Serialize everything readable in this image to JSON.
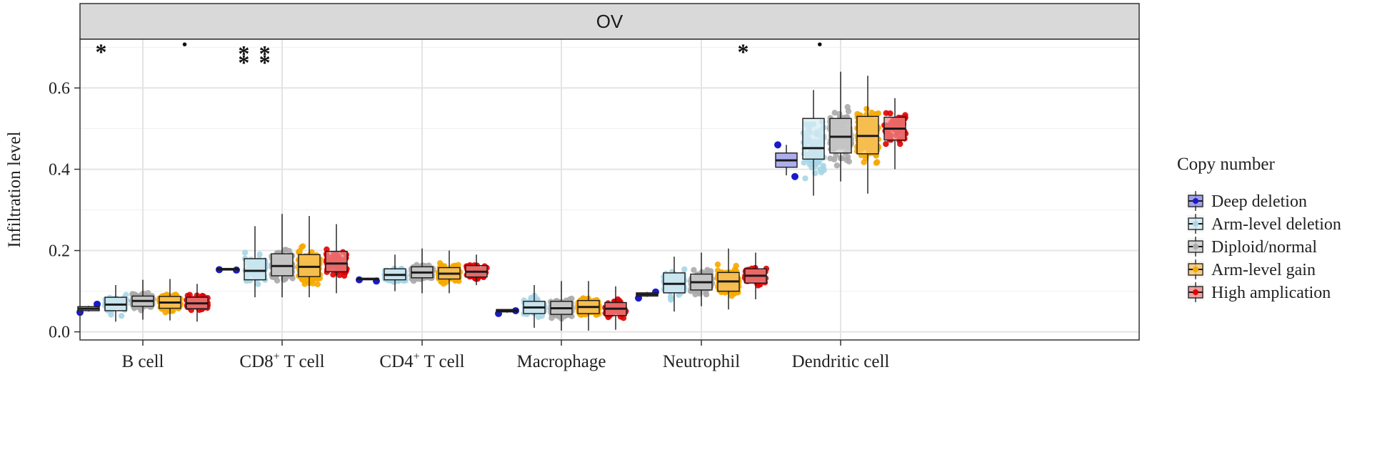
{
  "chart_data": {
    "type": "boxplot",
    "panel_title": "OV",
    "ylabel": "Infiltration level",
    "xlabel": "",
    "ylim": [
      -0.02,
      0.72
    ],
    "yticks": [
      0.0,
      0.2,
      0.4,
      0.6
    ],
    "ytick_labels": [
      "0.0",
      "0.2",
      "0.4",
      "0.6"
    ],
    "categories": [
      {
        "label": "B cell",
        "sup": ""
      },
      {
        "label": "CD8",
        "sup": "+",
        "rest": " T cell"
      },
      {
        "label": "CD4",
        "sup": "+",
        "rest": " T cell"
      },
      {
        "label": "Macrophage",
        "sup": ""
      },
      {
        "label": "Neutrophil",
        "sup": ""
      },
      {
        "label": "Dendritic cell",
        "sup": ""
      }
    ],
    "legend": {
      "title": "Copy number",
      "position": "right",
      "items": [
        "Deep deletion",
        "Arm-level deletion",
        "Diploid/normal",
        "Arm-level gain",
        "High amplication"
      ]
    },
    "groups": [
      {
        "name": "Deep deletion",
        "fill": "#8f8fe8",
        "point": "#1a1acc",
        "n": 2
      },
      {
        "name": "Arm-level deletion",
        "fill": "#d6ebf2",
        "point": "#a8d5e6",
        "n": 90
      },
      {
        "name": "Diploid/normal",
        "fill": "#cfcfcf",
        "point": "#aaaaaa",
        "n": 160
      },
      {
        "name": "Arm-level gain",
        "fill": "#f7c56e",
        "point": "#f5a800",
        "n": 160
      },
      {
        "name": "High amplication",
        "fill": "#ef8f8f",
        "point": "#e00000",
        "n": 60
      }
    ],
    "series": [
      {
        "category": "B cell",
        "boxes": [
          {
            "q1": 0.052,
            "median": 0.057,
            "q3": 0.062,
            "wlo": 0.05,
            "whi": 0.064,
            "pts": [
              0.048,
              0.068
            ]
          },
          {
            "q1": 0.052,
            "median": 0.067,
            "q3": 0.085,
            "wlo": 0.025,
            "whi": 0.115
          },
          {
            "q1": 0.063,
            "median": 0.076,
            "q3": 0.088,
            "wlo": 0.03,
            "whi": 0.128
          },
          {
            "q1": 0.058,
            "median": 0.072,
            "q3": 0.087,
            "wlo": 0.028,
            "whi": 0.13
          },
          {
            "q1": 0.057,
            "median": 0.07,
            "q3": 0.085,
            "wlo": 0.025,
            "whi": 0.118
          }
        ]
      },
      {
        "category": "CD8+ T cell",
        "boxes": [
          {
            "q1": 0.152,
            "median": 0.154,
            "q3": 0.156,
            "wlo": 0.151,
            "whi": 0.157,
            "pts": [
              0.153,
              0.152
            ]
          },
          {
            "q1": 0.128,
            "median": 0.15,
            "q3": 0.18,
            "wlo": 0.085,
            "whi": 0.26
          },
          {
            "q1": 0.138,
            "median": 0.162,
            "q3": 0.192,
            "wlo": 0.085,
            "whi": 0.29
          },
          {
            "q1": 0.136,
            "median": 0.16,
            "q3": 0.19,
            "wlo": 0.085,
            "whi": 0.285
          },
          {
            "q1": 0.148,
            "median": 0.168,
            "q3": 0.198,
            "wlo": 0.095,
            "whi": 0.265
          }
        ]
      },
      {
        "category": "CD4+ T cell",
        "boxes": [
          {
            "q1": 0.128,
            "median": 0.13,
            "q3": 0.132,
            "wlo": 0.127,
            "whi": 0.133,
            "pts": [
              0.128,
              0.125
            ]
          },
          {
            "q1": 0.128,
            "median": 0.14,
            "q3": 0.155,
            "wlo": 0.1,
            "whi": 0.19
          },
          {
            "q1": 0.133,
            "median": 0.146,
            "q3": 0.16,
            "wlo": 0.095,
            "whi": 0.205
          },
          {
            "q1": 0.13,
            "median": 0.143,
            "q3": 0.158,
            "wlo": 0.095,
            "whi": 0.2
          },
          {
            "q1": 0.135,
            "median": 0.148,
            "q3": 0.163,
            "wlo": 0.115,
            "whi": 0.19
          }
        ]
      },
      {
        "category": "Macrophage",
        "boxes": [
          {
            "q1": 0.049,
            "median": 0.052,
            "q3": 0.055,
            "wlo": 0.047,
            "whi": 0.056,
            "pts": [
              0.045,
              0.052
            ]
          },
          {
            "q1": 0.045,
            "median": 0.06,
            "q3": 0.075,
            "wlo": 0.01,
            "whi": 0.115
          },
          {
            "q1": 0.043,
            "median": 0.058,
            "q3": 0.075,
            "wlo": 0.003,
            "whi": 0.125
          },
          {
            "q1": 0.045,
            "median": 0.061,
            "q3": 0.077,
            "wlo": 0.003,
            "whi": 0.125
          },
          {
            "q1": 0.04,
            "median": 0.057,
            "q3": 0.072,
            "wlo": 0.005,
            "whi": 0.112
          }
        ]
      },
      {
        "category": "Neutrophil",
        "boxes": [
          {
            "q1": 0.088,
            "median": 0.092,
            "q3": 0.096,
            "wlo": 0.086,
            "whi": 0.098,
            "pts": [
              0.083,
              0.098
            ]
          },
          {
            "q1": 0.096,
            "median": 0.118,
            "q3": 0.145,
            "wlo": 0.05,
            "whi": 0.185
          },
          {
            "q1": 0.103,
            "median": 0.122,
            "q3": 0.142,
            "wlo": 0.063,
            "whi": 0.195
          },
          {
            "q1": 0.1,
            "median": 0.124,
            "q3": 0.146,
            "wlo": 0.055,
            "whi": 0.205
          },
          {
            "q1": 0.12,
            "median": 0.138,
            "q3": 0.155,
            "wlo": 0.08,
            "whi": 0.195
          }
        ]
      },
      {
        "category": "Dendritic cell",
        "boxes": [
          {
            "q1": 0.405,
            "median": 0.422,
            "q3": 0.44,
            "wlo": 0.385,
            "whi": 0.46,
            "pts": [
              0.46,
              0.382
            ]
          },
          {
            "q1": 0.425,
            "median": 0.452,
            "q3": 0.525,
            "wlo": 0.335,
            "whi": 0.595
          },
          {
            "q1": 0.44,
            "median": 0.48,
            "q3": 0.525,
            "wlo": 0.37,
            "whi": 0.64
          },
          {
            "q1": 0.438,
            "median": 0.482,
            "q3": 0.53,
            "wlo": 0.34,
            "whi": 0.63
          },
          {
            "q1": 0.472,
            "median": 0.5,
            "q3": 0.528,
            "wlo": 0.4,
            "whi": 0.575
          }
        ]
      }
    ],
    "annotations": [
      {
        "category": "B cell",
        "text": "*",
        "y": 0.695,
        "offset": -0.6
      },
      {
        "category": "B cell",
        "text": "·",
        "y": 0.695,
        "offset": 0.6
      },
      {
        "category": "CD8+ T cell",
        "text": "*",
        "y": 0.69,
        "offset": -0.55
      },
      {
        "category": "CD8+ T cell",
        "text": "*",
        "y": 0.668,
        "offset": -0.55
      },
      {
        "category": "CD8+ T cell",
        "text": "*",
        "y": 0.69,
        "offset": -0.25
      },
      {
        "category": "CD8+ T cell",
        "text": "*",
        "y": 0.668,
        "offset": -0.25
      },
      {
        "category": "Neutrophil",
        "text": "*",
        "y": 0.695,
        "offset": 0.6
      },
      {
        "category": "Dendritic cell",
        "text": "·",
        "y": 0.695,
        "offset": -0.3
      }
    ]
  }
}
